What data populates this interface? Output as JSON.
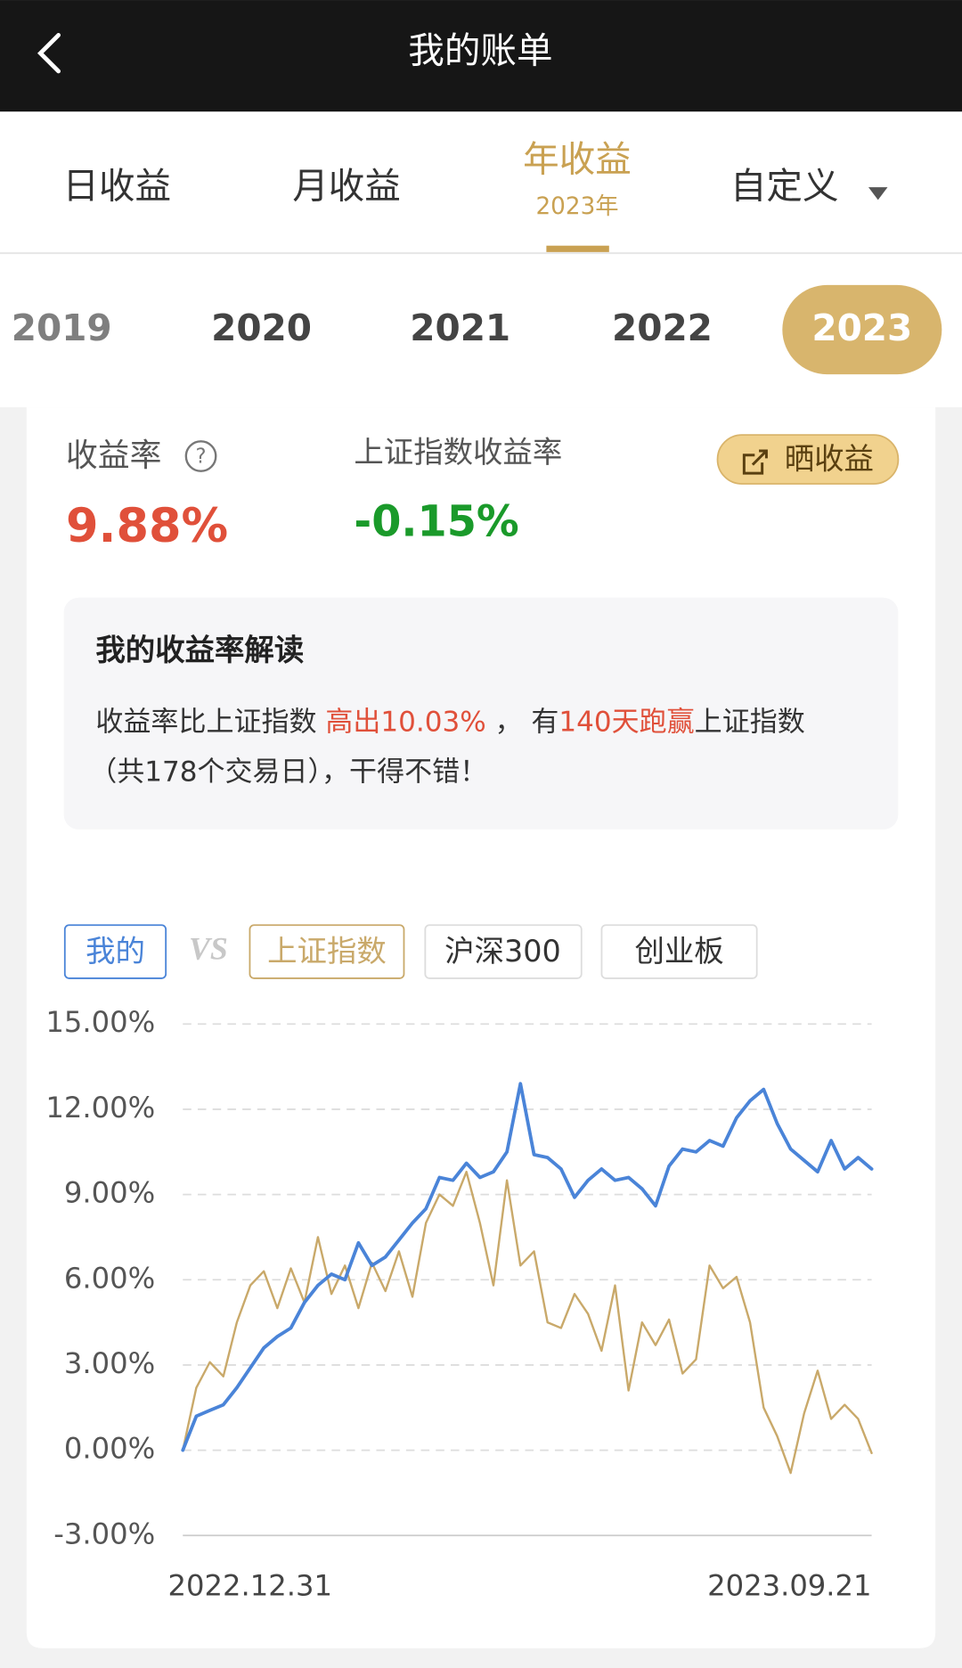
{
  "header": {
    "title": "我的账单"
  },
  "tabs": [
    "日收益",
    "月收益",
    "年收益",
    "自定义"
  ],
  "active_tab_sub": "2023年",
  "years": [
    "2019",
    "2020",
    "2021",
    "2022",
    "2023"
  ],
  "summary": {
    "my_label": "收益率",
    "my_value": "9.88%",
    "index_label": "上证指数收益率",
    "index_value": "-0.15%",
    "share_button": "晒收益"
  },
  "interpretation": {
    "title": "我的收益率解读",
    "text_parts": [
      "收益率比上证指数 ",
      "高出10.03%",
      " ， 有",
      "140天跑赢",
      "上证指数",
      "（共178个交易日），干得不错！"
    ]
  },
  "compare": {
    "vs": "VS",
    "options": [
      "沪深300",
      "创业板"
    ]
  },
  "chart_data": {
    "type": "line",
    "categories": [
      "2022.12.31",
      null,
      null,
      null,
      null,
      null,
      null,
      null,
      null,
      null,
      null,
      null,
      null,
      null,
      null,
      null,
      null,
      null,
      null,
      null,
      null,
      null,
      null,
      null,
      null,
      null,
      null,
      null,
      null,
      null,
      null,
      null,
      null,
      null,
      null,
      null,
      null,
      null,
      null,
      null,
      null,
      null,
      null,
      null,
      null,
      null,
      null,
      null,
      null,
      null,
      null,
      "2023.09.21"
    ],
    "series": [
      {
        "name": "我的",
        "color": "#4a84d8",
        "values": [
          0,
          1.2,
          1.4,
          1.6,
          2.2,
          2.9,
          3.6,
          4.0,
          4.3,
          5.2,
          5.8,
          6.2,
          6.0,
          7.3,
          6.5,
          6.8,
          7.4,
          8.0,
          8.5,
          9.6,
          9.5,
          10.1,
          9.6,
          9.8,
          10.5,
          12.9,
          10.4,
          10.3,
          9.9,
          8.9,
          9.5,
          9.9,
          9.5,
          9.6,
          9.2,
          8.6,
          10.0,
          10.6,
          10.5,
          10.9,
          10.7,
          11.7,
          12.3,
          12.7,
          11.5,
          10.6,
          10.2,
          9.8,
          10.9,
          9.9,
          10.3,
          9.9
        ]
      },
      {
        "name": "上证指数",
        "color": "#c9a96a",
        "values": [
          0,
          2.2,
          3.1,
          2.6,
          4.5,
          5.8,
          6.3,
          5.0,
          6.4,
          5.2,
          7.5,
          5.5,
          6.5,
          5.0,
          6.6,
          5.6,
          7.0,
          5.4,
          8.0,
          9.0,
          8.6,
          9.8,
          8.0,
          5.8,
          9.5,
          6.5,
          7.0,
          4.5,
          4.3,
          5.5,
          4.8,
          3.5,
          5.8,
          2.1,
          4.5,
          3.7,
          4.6,
          2.7,
          3.2,
          6.5,
          5.7,
          6.1,
          4.5,
          1.5,
          0.5,
          -0.8,
          1.3,
          2.8,
          1.1,
          1.6,
          1.1,
          -0.1
        ]
      }
    ],
    "ylim": [
      -3,
      15
    ],
    "yticks": [
      {
        "value": -3,
        "label": "-3.00%"
      },
      {
        "value": 0,
        "label": "0.00%"
      },
      {
        "value": 3,
        "label": "3.00%"
      },
      {
        "value": 6,
        "label": "6.00%"
      },
      {
        "value": 9,
        "label": "9.00%"
      },
      {
        "value": 12,
        "label": "12.00%"
      },
      {
        "value": 15,
        "label": "15.00%"
      }
    ],
    "grid": true
  }
}
